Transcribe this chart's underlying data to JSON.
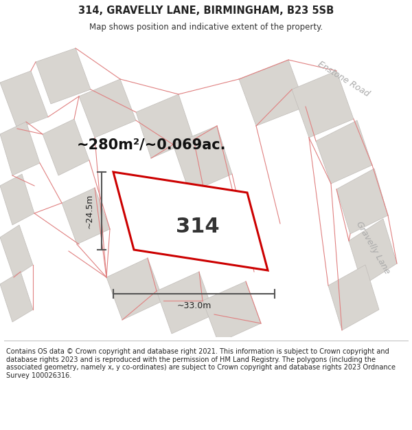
{
  "title_line1": "314, GRAVELLY LANE, BIRMINGHAM, B23 5SB",
  "title_line2": "Map shows position and indicative extent of the property.",
  "area_label": "~280m²/~0.069ac.",
  "property_number": "314",
  "dim_width": "~33.0m",
  "dim_height": "~24.5m",
  "map_bg": "#f5f3f0",
  "road_label_enstone": "Enstone Road",
  "road_label_gravelly": "Gravelly Lane",
  "footer_text": "Contains OS data © Crown copyright and database right 2021. This information is subject to Crown copyright and database rights 2023 and is reproduced with the permission of HM Land Registry. The polygons (including the associated geometry, namely x, y co-ordinates) are subject to Crown copyright and database rights 2023 Ordnance Survey 100026316.",
  "highlight_color": "#cc0000",
  "building_color": "#d8d5d0",
  "building_edge": "#c0bcb8",
  "plot_line_color": "#e08080",
  "dim_line_color": "#555555",
  "title_fontsize": 10.5,
  "subtitle_fontsize": 8.5,
  "area_fontsize": 15,
  "number_fontsize": 22,
  "road_fontsize": 9,
  "dim_fontsize": 9,
  "footer_fontsize": 7
}
